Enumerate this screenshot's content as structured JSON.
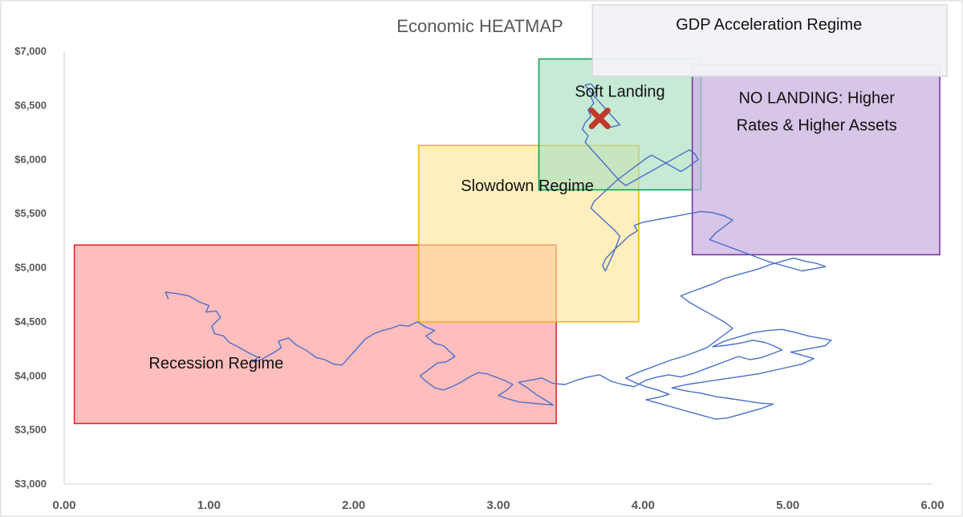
{
  "chart_data": {
    "type": "line",
    "title": "Economic HEATMAP",
    "xlabel": "",
    "ylabel": "",
    "xlim": [
      0,
      6
    ],
    "ylim": [
      3000,
      7000
    ],
    "x_ticks": [
      {
        "value": 0,
        "label": "0.00"
      },
      {
        "value": 1,
        "label": "1.00"
      },
      {
        "value": 2,
        "label": "2.00"
      },
      {
        "value": 3,
        "label": "3.00"
      },
      {
        "value": 4,
        "label": "4.00"
      },
      {
        "value": 5,
        "label": "5.00"
      },
      {
        "value": 6,
        "label": "6.00"
      }
    ],
    "y_ticks": [
      {
        "value": 3000,
        "label": "$3,000"
      },
      {
        "value": 3500,
        "label": "$3,500"
      },
      {
        "value": 4000,
        "label": "$4,000"
      },
      {
        "value": 4500,
        "label": "$4,500"
      },
      {
        "value": 5000,
        "label": "$5,000"
      },
      {
        "value": 5500,
        "label": "$5,500"
      },
      {
        "value": 6000,
        "label": "$6,000"
      },
      {
        "value": 6500,
        "label": "$6,500"
      },
      {
        "value": 7000,
        "label": "$7,000"
      }
    ],
    "grid": false,
    "legend": "none",
    "regimes": [
      {
        "name": "recession-regime",
        "label": "Recession Regime",
        "x0": 0.07,
        "x1": 3.4,
        "y0": 3560,
        "y1": 5210,
        "fill": "#ff9999",
        "stroke": "#e02020",
        "opacity": 0.65,
        "label_x": 1.05,
        "label_y": 4070,
        "label_anchor": "middle"
      },
      {
        "name": "slowdown-regime",
        "label": "Slowdown Regime",
        "x0": 2.45,
        "x1": 3.97,
        "y0": 4500,
        "y1": 6130,
        "fill": "#ffe699",
        "stroke": "#f0b400",
        "opacity": 0.65,
        "label_x": 3.2,
        "label_y": 5710,
        "label_anchor": "middle"
      },
      {
        "name": "soft-landing-regime",
        "label": "Soft Landing",
        "x0": 3.28,
        "x1": 4.4,
        "y0": 5720,
        "y1": 6930,
        "fill": "#a9dfbf",
        "stroke": "#00a050",
        "opacity": 0.65,
        "label_x": 3.84,
        "label_y": 6580,
        "label_anchor": "middle"
      },
      {
        "name": "no-landing-regime",
        "label": "NO LANDING: Higher",
        "label2": "Rates & Higher Assets",
        "x0": 4.34,
        "x1": 6.05,
        "y0": 5120,
        "y1": 6880,
        "fill": "#c9b3e0",
        "stroke": "#7030a0",
        "opacity": 0.75,
        "label_x": 5.2,
        "label_y": 6520,
        "label_anchor": "middle"
      },
      {
        "name": "gdp-acceleration-regime",
        "label": "GDP Acceleration Regime",
        "x0": 3.65,
        "x1": 6.1,
        "y0": 6770,
        "y1": 7430,
        "fill": "#f2f2f7",
        "stroke": "#d9d9d9",
        "opacity": 0.95,
        "label_x": 4.87,
        "label_y": 7200,
        "label_anchor": "middle"
      }
    ],
    "marker": {
      "x": 3.7,
      "y": 6380,
      "color": "#c0392b"
    },
    "series": [
      {
        "line_color": "#4a6fc8",
        "points": [
          [
            0.72,
            4710
          ],
          [
            0.7,
            4775
          ],
          [
            0.78,
            4760
          ],
          [
            0.86,
            4740
          ],
          [
            0.94,
            4680
          ],
          [
            1.0,
            4650
          ],
          [
            0.98,
            4590
          ],
          [
            1.05,
            4600
          ],
          [
            1.08,
            4540
          ],
          [
            1.02,
            4460
          ],
          [
            1.04,
            4390
          ],
          [
            1.1,
            4370
          ],
          [
            1.14,
            4310
          ],
          [
            1.2,
            4270
          ],
          [
            1.28,
            4210
          ],
          [
            1.34,
            4170
          ],
          [
            1.3,
            4130
          ],
          [
            1.36,
            4150
          ],
          [
            1.44,
            4210
          ],
          [
            1.5,
            4260
          ],
          [
            1.48,
            4320
          ],
          [
            1.55,
            4350
          ],
          [
            1.6,
            4290
          ],
          [
            1.68,
            4230
          ],
          [
            1.74,
            4170
          ],
          [
            1.8,
            4150
          ],
          [
            1.86,
            4110
          ],
          [
            1.92,
            4100
          ],
          [
            1.96,
            4160
          ],
          [
            2.0,
            4220
          ],
          [
            2.04,
            4280
          ],
          [
            2.08,
            4340
          ],
          [
            2.14,
            4390
          ],
          [
            2.2,
            4420
          ],
          [
            2.26,
            4440
          ],
          [
            2.32,
            4470
          ],
          [
            2.38,
            4460
          ],
          [
            2.44,
            4500
          ],
          [
            2.5,
            4450
          ],
          [
            2.56,
            4420
          ],
          [
            2.5,
            4370
          ],
          [
            2.56,
            4300
          ],
          [
            2.62,
            4280
          ],
          [
            2.66,
            4230
          ],
          [
            2.7,
            4180
          ],
          [
            2.64,
            4130
          ],
          [
            2.58,
            4120
          ],
          [
            2.52,
            4060
          ],
          [
            2.46,
            4000
          ],
          [
            2.5,
            3950
          ],
          [
            2.56,
            3890
          ],
          [
            2.62,
            3870
          ],
          [
            2.68,
            3900
          ],
          [
            2.74,
            3940
          ],
          [
            2.8,
            3990
          ],
          [
            2.86,
            4030
          ],
          [
            2.92,
            4020
          ],
          [
            2.98,
            3990
          ],
          [
            3.04,
            3960
          ],
          [
            3.1,
            3920
          ],
          [
            3.06,
            3870
          ],
          [
            3.0,
            3820
          ],
          [
            3.06,
            3790
          ],
          [
            3.14,
            3760
          ],
          [
            3.22,
            3750
          ],
          [
            3.3,
            3740
          ],
          [
            3.38,
            3730
          ],
          [
            3.32,
            3780
          ],
          [
            3.26,
            3830
          ],
          [
            3.2,
            3890
          ],
          [
            3.14,
            3940
          ],
          [
            3.22,
            3960
          ],
          [
            3.3,
            3980
          ],
          [
            3.38,
            3930
          ],
          [
            3.46,
            3920
          ],
          [
            3.54,
            3960
          ],
          [
            3.62,
            3990
          ],
          [
            3.7,
            4010
          ],
          [
            3.78,
            3950
          ],
          [
            3.86,
            3920
          ],
          [
            3.94,
            3900
          ],
          [
            4.02,
            3960
          ],
          [
            4.1,
            3990
          ],
          [
            4.18,
            4010
          ],
          [
            4.26,
            3990
          ],
          [
            4.34,
            4020
          ],
          [
            4.42,
            4060
          ],
          [
            4.5,
            4100
          ],
          [
            4.58,
            4140
          ],
          [
            4.66,
            4180
          ],
          [
            4.74,
            4150
          ],
          [
            4.82,
            4170
          ],
          [
            4.9,
            4210
          ],
          [
            4.96,
            4240
          ],
          [
            4.9,
            4280
          ],
          [
            4.84,
            4310
          ],
          [
            4.76,
            4330
          ],
          [
            4.66,
            4300
          ],
          [
            4.56,
            4280
          ],
          [
            4.48,
            4270
          ],
          [
            4.56,
            4320
          ],
          [
            4.66,
            4360
          ],
          [
            4.76,
            4400
          ],
          [
            4.86,
            4420
          ],
          [
            4.96,
            4430
          ],
          [
            5.06,
            4400
          ],
          [
            5.14,
            4370
          ],
          [
            5.22,
            4350
          ],
          [
            5.3,
            4330
          ],
          [
            5.26,
            4280
          ],
          [
            5.18,
            4260
          ],
          [
            5.1,
            4240
          ],
          [
            5.02,
            4220
          ],
          [
            5.1,
            4190
          ],
          [
            5.18,
            4160
          ],
          [
            5.1,
            4110
          ],
          [
            5.0,
            4080
          ],
          [
            4.9,
            4050
          ],
          [
            4.8,
            4020
          ],
          [
            4.7,
            4000
          ],
          [
            4.6,
            3980
          ],
          [
            4.5,
            3960
          ],
          [
            4.4,
            3940
          ],
          [
            4.3,
            3920
          ],
          [
            4.2,
            3890
          ],
          [
            4.3,
            3860
          ],
          [
            4.4,
            3840
          ],
          [
            4.5,
            3810
          ],
          [
            4.6,
            3790
          ],
          [
            4.7,
            3770
          ],
          [
            4.8,
            3750
          ],
          [
            4.9,
            3740
          ],
          [
            4.82,
            3700
          ],
          [
            4.74,
            3670
          ],
          [
            4.66,
            3640
          ],
          [
            4.58,
            3610
          ],
          [
            4.5,
            3600
          ],
          [
            4.42,
            3630
          ],
          [
            4.34,
            3660
          ],
          [
            4.26,
            3690
          ],
          [
            4.18,
            3720
          ],
          [
            4.1,
            3750
          ],
          [
            4.02,
            3780
          ],
          [
            4.1,
            3800
          ],
          [
            4.18,
            3830
          ],
          [
            4.1,
            3870
          ],
          [
            4.02,
            3900
          ],
          [
            3.94,
            3940
          ],
          [
            3.88,
            3980
          ],
          [
            3.96,
            4030
          ],
          [
            4.04,
            4070
          ],
          [
            4.12,
            4110
          ],
          [
            4.2,
            4150
          ],
          [
            4.28,
            4180
          ],
          [
            4.36,
            4220
          ],
          [
            4.44,
            4260
          ],
          [
            4.5,
            4320
          ],
          [
            4.56,
            4380
          ],
          [
            4.62,
            4440
          ],
          [
            4.56,
            4500
          ],
          [
            4.48,
            4560
          ],
          [
            4.4,
            4620
          ],
          [
            4.32,
            4680
          ],
          [
            4.26,
            4740
          ],
          [
            4.34,
            4780
          ],
          [
            4.42,
            4820
          ],
          [
            4.5,
            4860
          ],
          [
            4.56,
            4900
          ],
          [
            4.64,
            4930
          ],
          [
            4.72,
            4960
          ],
          [
            4.8,
            4990
          ],
          [
            4.88,
            5030
          ],
          [
            4.96,
            5060
          ],
          [
            5.04,
            5090
          ],
          [
            5.12,
            5060
          ],
          [
            5.2,
            5040
          ],
          [
            5.26,
            5010
          ],
          [
            5.18,
            4990
          ],
          [
            5.1,
            4970
          ],
          [
            5.02,
            5000
          ],
          [
            4.94,
            5030
          ],
          [
            4.86,
            5060
          ],
          [
            4.78,
            5100
          ],
          [
            4.7,
            5140
          ],
          [
            4.62,
            5180
          ],
          [
            4.54,
            5220
          ],
          [
            4.46,
            5260
          ],
          [
            4.5,
            5320
          ],
          [
            4.56,
            5380
          ],
          [
            4.62,
            5440
          ],
          [
            4.56,
            5480
          ],
          [
            4.48,
            5510
          ],
          [
            4.4,
            5520
          ],
          [
            4.32,
            5500
          ],
          [
            4.24,
            5480
          ],
          [
            4.16,
            5460
          ],
          [
            4.08,
            5440
          ],
          [
            4.0,
            5420
          ],
          [
            3.94,
            5390
          ],
          [
            3.96,
            5340
          ],
          [
            3.9,
            5290
          ],
          [
            3.86,
            5240
          ],
          [
            3.82,
            5190
          ],
          [
            3.78,
            5140
          ],
          [
            3.74,
            5080
          ],
          [
            3.72,
            5020
          ],
          [
            3.74,
            4970
          ],
          [
            3.76,
            5030
          ],
          [
            3.78,
            5090
          ],
          [
            3.8,
            5150
          ],
          [
            3.82,
            5220
          ],
          [
            3.84,
            5290
          ],
          [
            3.8,
            5350
          ],
          [
            3.76,
            5400
          ],
          [
            3.72,
            5450
          ],
          [
            3.68,
            5500
          ],
          [
            3.64,
            5550
          ],
          [
            3.66,
            5610
          ],
          [
            3.7,
            5660
          ],
          [
            3.74,
            5710
          ],
          [
            3.78,
            5760
          ],
          [
            3.82,
            5810
          ],
          [
            3.86,
            5850
          ],
          [
            3.9,
            5890
          ],
          [
            3.94,
            5930
          ],
          [
            3.98,
            5970
          ],
          [
            4.02,
            6010
          ],
          [
            4.06,
            6040
          ],
          [
            4.1,
            6010
          ],
          [
            4.14,
            5980
          ],
          [
            4.18,
            5950
          ],
          [
            4.22,
            5920
          ],
          [
            4.26,
            5890
          ],
          [
            4.3,
            5920
          ],
          [
            4.34,
            5960
          ],
          [
            4.38,
            6000
          ],
          [
            4.36,
            6050
          ],
          [
            4.32,
            6090
          ],
          [
            4.28,
            6060
          ],
          [
            4.24,
            6030
          ],
          [
            4.2,
            6000
          ],
          [
            4.16,
            5970
          ],
          [
            4.12,
            5940
          ],
          [
            4.08,
            5910
          ],
          [
            4.04,
            5880
          ],
          [
            4.0,
            5850
          ],
          [
            3.96,
            5820
          ],
          [
            3.92,
            5790
          ],
          [
            3.88,
            5760
          ],
          [
            3.84,
            5800
          ],
          [
            3.8,
            5860
          ],
          [
            3.76,
            5920
          ],
          [
            3.72,
            5980
          ],
          [
            3.68,
            6040
          ],
          [
            3.64,
            6100
          ],
          [
            3.6,
            6160
          ],
          [
            3.62,
            6220
          ],
          [
            3.58,
            6280
          ],
          [
            3.6,
            6340
          ],
          [
            3.64,
            6400
          ],
          [
            3.62,
            6460
          ],
          [
            3.66,
            6520
          ],
          [
            3.64,
            6580
          ],
          [
            3.68,
            6640
          ],
          [
            3.64,
            6700
          ],
          [
            3.6,
            6690
          ],
          [
            3.64,
            6620
          ],
          [
            3.68,
            6560
          ],
          [
            3.72,
            6500
          ],
          [
            3.76,
            6440
          ],
          [
            3.8,
            6380
          ],
          [
            3.84,
            6320
          ],
          [
            3.78,
            6300
          ],
          [
            3.72,
            6330
          ]
        ]
      }
    ]
  }
}
